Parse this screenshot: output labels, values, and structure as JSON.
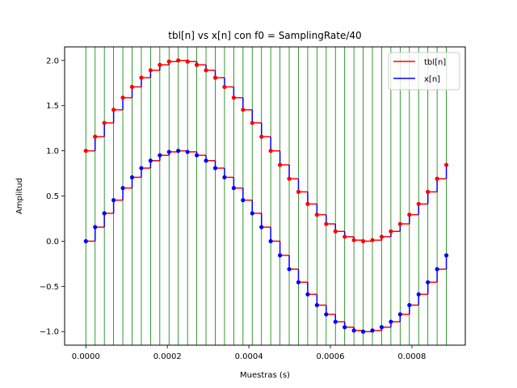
{
  "chart_data": {
    "type": "line",
    "title": "tbl[n] vs x[n] con f0 = SamplingRate/40",
    "xlabel": "Muestras (s)",
    "ylabel": "Amplitud",
    "xlim": [
      -5.21e-05,
      0.000931
    ],
    "ylim": [
      -1.15,
      2.15
    ],
    "x_ticks": [
      0,
      0.0002,
      0.0004,
      0.0006,
      0.0008
    ],
    "x_tick_labels": [
      "0.0000",
      "0.0002",
      "0.0004",
      "0.0006",
      "0.0008"
    ],
    "y_ticks": [
      -1.0,
      -0.5,
      0.0,
      0.5,
      1.0,
      1.5,
      2.0
    ],
    "y_tick_labels": [
      "−1.0",
      "−0.5",
      "0.0",
      "0.5",
      "1.0",
      "1.5",
      "2.0"
    ],
    "sample_period": 2.268e-05,
    "num_samples": 40,
    "grid": "vertical lines at each sample",
    "legend_position": "top-right",
    "series": [
      {
        "name": "tbl[n]",
        "color": "#ff0000",
        "values": [
          1.0,
          1.156,
          1.309,
          1.454,
          1.588,
          1.707,
          1.809,
          1.891,
          1.951,
          1.988,
          2.0,
          1.988,
          1.951,
          1.891,
          1.809,
          1.707,
          1.588,
          1.454,
          1.309,
          1.156,
          1.0,
          0.844,
          0.691,
          0.546,
          0.412,
          0.293,
          0.191,
          0.109,
          0.049,
          0.012,
          0.0,
          0.012,
          0.049,
          0.109,
          0.191,
          0.293,
          0.412,
          0.546,
          0.691,
          0.844
        ]
      },
      {
        "name": "x[n]",
        "color": "#0000ff",
        "values": [
          0.0,
          0.156,
          0.309,
          0.454,
          0.588,
          0.707,
          0.809,
          0.891,
          0.951,
          0.988,
          1.0,
          0.988,
          0.951,
          0.891,
          0.809,
          0.707,
          0.588,
          0.454,
          0.309,
          0.156,
          0.0,
          -0.156,
          -0.309,
          -0.454,
          -0.588,
          -0.707,
          -0.809,
          -0.891,
          -0.951,
          -0.988,
          -1.0,
          -0.988,
          -0.951,
          -0.891,
          -0.809,
          -0.707,
          -0.588,
          -0.454,
          -0.309,
          -0.156
        ]
      }
    ]
  },
  "colors": {
    "grid": "#008000",
    "step_primary": "#ff0000",
    "step_secondary": "#0000ff",
    "marker_red": "#ff0000",
    "marker_blue": "#0000ff"
  }
}
